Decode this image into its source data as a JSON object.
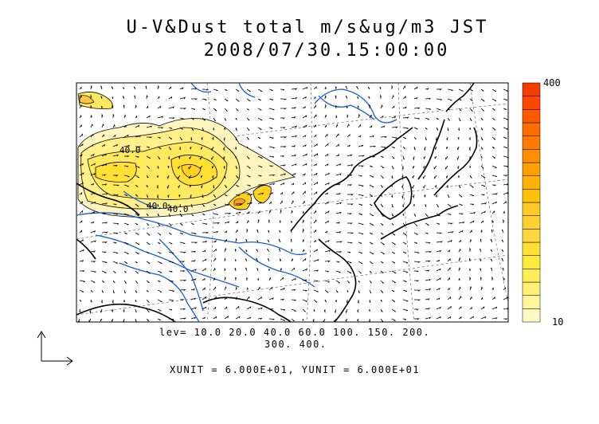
{
  "title": {
    "line1": "U-V&Dust total m/s&ug/m3 JST",
    "line2": "2008/07/30.15:00:00"
  },
  "colorbar": {
    "max_label": "400",
    "min_label": "10",
    "colors": [
      "#fff9c4",
      "#fff59d",
      "#fff176",
      "#ffee58",
      "#ffeb3b",
      "#ffe135",
      "#ffd740",
      "#ffd12e",
      "#ffc926",
      "#ffc107",
      "#ffb300",
      "#ffa000",
      "#ff8f00",
      "#ff7b00",
      "#ff6d00",
      "#ff5a00",
      "#ff4500",
      "#f43c00"
    ]
  },
  "contour_labels": [
    "40.0",
    "40.0",
    "40.0"
  ],
  "levels": {
    "line1": "lev= 10.0 20.0 40.0 60.0 100. 150. 200.",
    "line2": "300. 400."
  },
  "units": "XUNIT = 6.000E+01, YUNIT = 6.000E+01",
  "map": {
    "coast_color": "#000000",
    "river_color": "#1e5bd6",
    "grid_color": "#555555"
  }
}
